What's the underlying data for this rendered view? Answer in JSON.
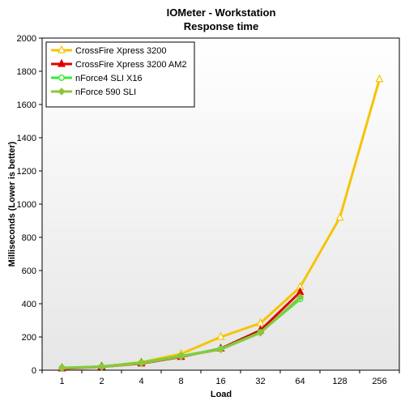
{
  "chart_data": {
    "type": "line",
    "title": "IOMeter - Workstation",
    "subtitle": "Response time",
    "xlabel": "Load",
    "ylabel": "Milliseconds (Lower is better)",
    "categories": [
      "1",
      "2",
      "4",
      "8",
      "16",
      "32",
      "64",
      "128",
      "256"
    ],
    "ylim": [
      0,
      2000
    ],
    "yticks": [
      0,
      200,
      400,
      600,
      800,
      1000,
      1200,
      1400,
      1600,
      1800,
      2000
    ],
    "grid": false,
    "legend_position": "top-left",
    "series": [
      {
        "name": "CrossFire Xpress 3200",
        "color": "#f5c400",
        "marker": "triangle-open",
        "values": [
          12,
          22,
          48,
          98,
          200,
          283,
          500,
          918,
          1752
        ]
      },
      {
        "name": "CrossFire Xpress 3200 AM2",
        "color": "#e00000",
        "marker": "triangle-filled",
        "values": [
          10,
          20,
          40,
          80,
          130,
          240,
          470,
          null,
          null
        ]
      },
      {
        "name": "nForce4 SLI X16",
        "color": "#33ee33",
        "marker": "circle-open",
        "values": [
          14,
          22,
          45,
          85,
          128,
          228,
          428,
          null,
          null
        ]
      },
      {
        "name": "nForce 590 SLI",
        "color": "#8cc63f",
        "marker": "diamond-filled",
        "values": [
          12,
          20,
          42,
          82,
          125,
          225,
          440,
          null,
          null
        ]
      }
    ]
  }
}
